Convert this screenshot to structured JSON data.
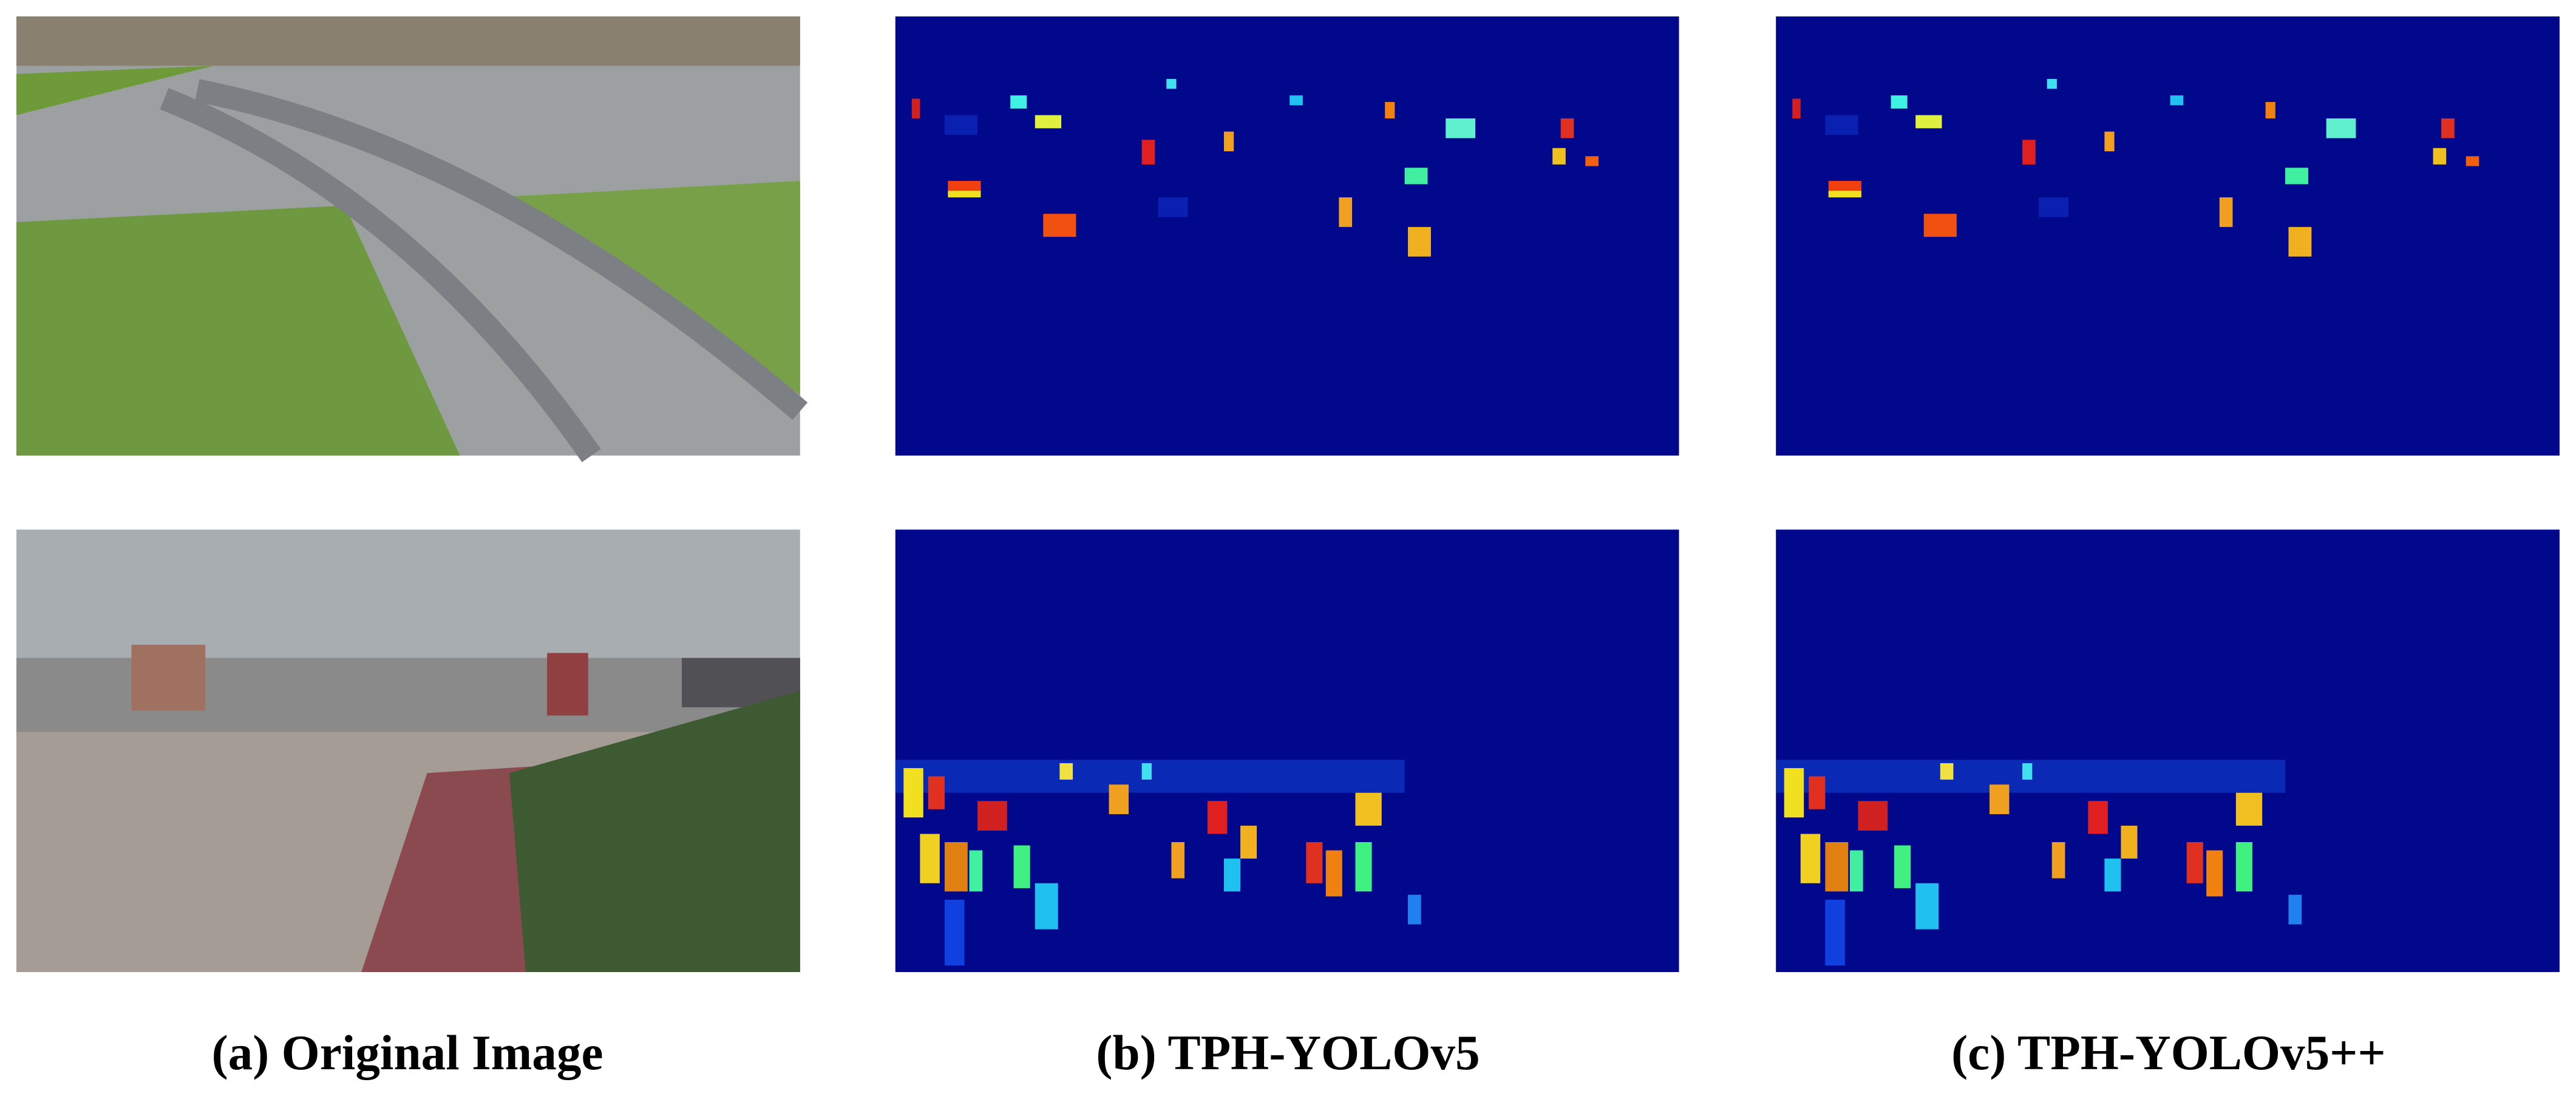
{
  "figure": {
    "captions": [
      "(a) Original Image",
      "(b) TPH-YOLOv5",
      "(c) TPH-YOLOv5++"
    ]
  }
}
